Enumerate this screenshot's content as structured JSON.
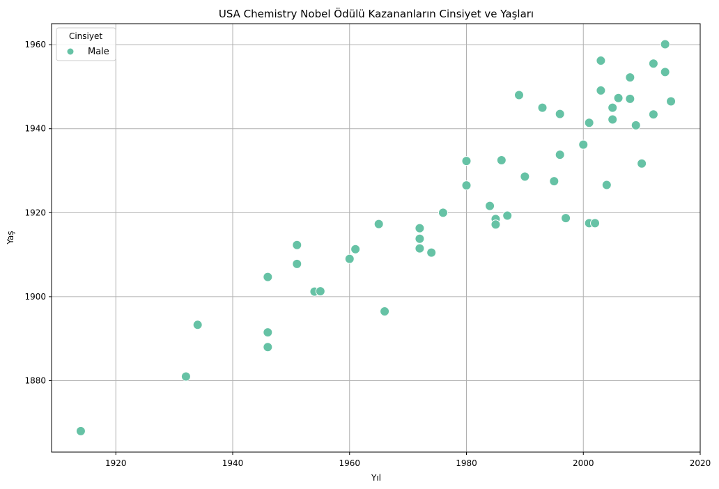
{
  "chart_data": {
    "type": "scatter",
    "title": "USA Chemistry Nobel Ödülü Kazananların Cinsiyet ve Yaşları",
    "xlabel": "Yıl",
    "ylabel": "Yaş",
    "xlim": [
      1909,
      2020
    ],
    "ylim": [
      1863,
      1965
    ],
    "xticks": [
      1920,
      1940,
      1960,
      1980,
      2000,
      2020
    ],
    "yticks": [
      1880,
      1900,
      1920,
      1940,
      1960
    ],
    "grid": true,
    "legend": {
      "title": "Cinsiyet",
      "placement": "top-left"
    },
    "colors": {
      "marker": "#66c2a5",
      "marker_edge": "#ffffff",
      "grid": "#b0b0b0",
      "axis": "#000000"
    },
    "series": [
      {
        "name": "Male",
        "points": [
          [
            1914,
            1868
          ],
          [
            1932,
            1881
          ],
          [
            1934,
            1893.3
          ],
          [
            1946,
            1904.7
          ],
          [
            1946,
            1891.5
          ],
          [
            1946,
            1888
          ],
          [
            1951,
            1912.3
          ],
          [
            1951,
            1907.8
          ],
          [
            1954,
            1901.2
          ],
          [
            1955,
            1901.3
          ],
          [
            1960,
            1909
          ],
          [
            1961,
            1911.3
          ],
          [
            1965,
            1917.3
          ],
          [
            1966,
            1896.5
          ],
          [
            1972,
            1916.3
          ],
          [
            1972,
            1913.8
          ],
          [
            1972,
            1911.5
          ],
          [
            1974,
            1910.5
          ],
          [
            1976,
            1920
          ],
          [
            1980,
            1932.3
          ],
          [
            1980,
            1926.5
          ],
          [
            1984,
            1921.6
          ],
          [
            1985,
            1918.5
          ],
          [
            1985,
            1917.2
          ],
          [
            1986,
            1932.5
          ],
          [
            1987,
            1919.3
          ],
          [
            1989,
            1948
          ],
          [
            1990,
            1928.6
          ],
          [
            1993,
            1945
          ],
          [
            1995,
            1927.5
          ],
          [
            1996,
            1943.5
          ],
          [
            1996,
            1933.8
          ],
          [
            1997,
            1918.7
          ],
          [
            2000,
            1936.2
          ],
          [
            2001,
            1941.4
          ],
          [
            2001,
            1917.5
          ],
          [
            2002,
            1917.5
          ],
          [
            2003,
            1956.2
          ],
          [
            2003,
            1949.1
          ],
          [
            2004,
            1926.6
          ],
          [
            2005,
            1945
          ],
          [
            2005,
            1942.2
          ],
          [
            2006,
            1947.3
          ],
          [
            2008,
            1952.2
          ],
          [
            2008,
            1947.1
          ],
          [
            2009,
            1940.8
          ],
          [
            2010,
            1931.7
          ],
          [
            2012,
            1955.5
          ],
          [
            2012,
            1943.4
          ],
          [
            2014,
            1960.1
          ],
          [
            2014,
            1953.5
          ],
          [
            2015,
            1946.5
          ]
        ]
      }
    ]
  }
}
